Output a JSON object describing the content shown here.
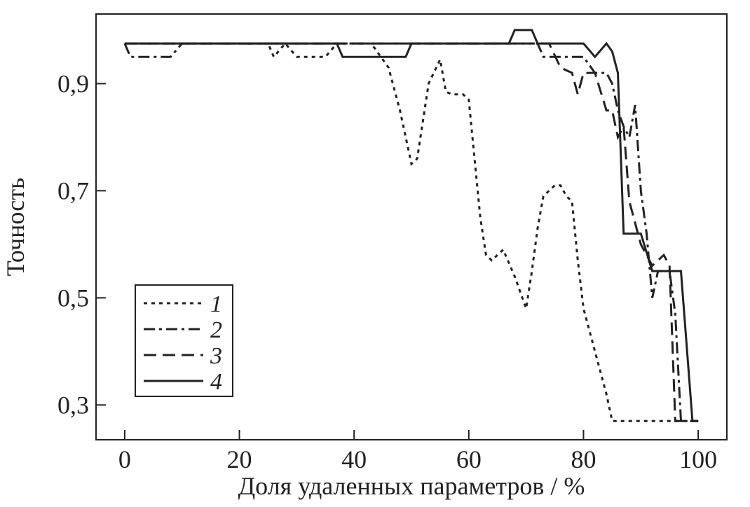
{
  "chart_data": {
    "type": "line",
    "title": "",
    "xlabel": "Доля удаленных параметров / %",
    "ylabel": "Точность",
    "xlim": [
      -5,
      105
    ],
    "ylim": [
      0.235,
      1.03
    ],
    "x_ticks": [
      0,
      20,
      40,
      60,
      80,
      100
    ],
    "x_tick_labels": [
      "0",
      "20",
      "40",
      "60",
      "80",
      "100"
    ],
    "y_ticks": [
      0.3,
      0.5,
      0.7,
      0.9
    ],
    "y_tick_labels": [
      "0,3",
      "0,5",
      "0,7",
      "0,9"
    ],
    "grid": false,
    "legend_position": "lower-left",
    "series": [
      {
        "name": "1",
        "dash": "dotted",
        "points": [
          [
            0,
            0.975
          ],
          [
            10,
            0.975
          ],
          [
            20,
            0.975
          ],
          [
            25,
            0.975
          ],
          [
            26,
            0.95
          ],
          [
            28,
            0.975
          ],
          [
            30,
            0.95
          ],
          [
            35,
            0.95
          ],
          [
            37,
            0.975
          ],
          [
            43,
            0.975
          ],
          [
            46,
            0.93
          ],
          [
            48,
            0.85
          ],
          [
            50,
            0.75
          ],
          [
            51,
            0.76
          ],
          [
            53,
            0.9
          ],
          [
            55,
            0.945
          ],
          [
            56,
            0.885
          ],
          [
            57,
            0.88
          ],
          [
            59,
            0.88
          ],
          [
            60,
            0.87
          ],
          [
            61,
            0.76
          ],
          [
            62,
            0.65
          ],
          [
            63,
            0.58
          ],
          [
            64,
            0.57
          ],
          [
            66,
            0.59
          ],
          [
            68,
            0.54
          ],
          [
            70,
            0.48
          ],
          [
            71,
            0.55
          ],
          [
            72,
            0.63
          ],
          [
            73,
            0.69
          ],
          [
            75,
            0.71
          ],
          [
            76,
            0.71
          ],
          [
            77,
            0.69
          ],
          [
            78,
            0.68
          ],
          [
            79,
            0.57
          ],
          [
            80,
            0.48
          ],
          [
            82,
            0.4
          ],
          [
            84,
            0.32
          ],
          [
            85,
            0.27
          ],
          [
            100,
            0.27
          ]
        ]
      },
      {
        "name": "2",
        "dash": "dash-dot",
        "points": [
          [
            0,
            0.975
          ],
          [
            1,
            0.95
          ],
          [
            3,
            0.95
          ],
          [
            8,
            0.95
          ],
          [
            10,
            0.975
          ],
          [
            20,
            0.975
          ],
          [
            40,
            0.975
          ],
          [
            60,
            0.975
          ],
          [
            70,
            0.975
          ],
          [
            72,
            0.975
          ],
          [
            73,
            0.95
          ],
          [
            78,
            0.95
          ],
          [
            80,
            0.95
          ],
          [
            82,
            0.92
          ],
          [
            84,
            0.92
          ],
          [
            85,
            0.9
          ],
          [
            86,
            0.85
          ],
          [
            87,
            0.82
          ],
          [
            88,
            0.8
          ],
          [
            89,
            0.86
          ],
          [
            90,
            0.7
          ],
          [
            91,
            0.62
          ],
          [
            92,
            0.5
          ],
          [
            93,
            0.55
          ],
          [
            95,
            0.55
          ],
          [
            96,
            0.47
          ],
          [
            97,
            0.27
          ],
          [
            100,
            0.27
          ]
        ]
      },
      {
        "name": "3",
        "dash": "dashed",
        "points": [
          [
            0,
            0.975
          ],
          [
            20,
            0.975
          ],
          [
            40,
            0.975
          ],
          [
            60,
            0.975
          ],
          [
            70,
            0.975
          ],
          [
            74,
            0.975
          ],
          [
            76,
            0.93
          ],
          [
            78,
            0.92
          ],
          [
            79,
            0.88
          ],
          [
            80,
            0.92
          ],
          [
            82,
            0.92
          ],
          [
            84,
            0.85
          ],
          [
            85,
            0.85
          ],
          [
            86,
            0.8
          ],
          [
            87,
            0.82
          ],
          [
            88,
            0.68
          ],
          [
            90,
            0.6
          ],
          [
            92,
            0.56
          ],
          [
            94,
            0.58
          ],
          [
            95,
            0.56
          ],
          [
            96,
            0.27
          ],
          [
            100,
            0.27
          ]
        ]
      },
      {
        "name": "4",
        "dash": "solid",
        "points": [
          [
            0,
            0.975
          ],
          [
            20,
            0.975
          ],
          [
            37,
            0.975
          ],
          [
            38,
            0.95
          ],
          [
            41,
            0.95
          ],
          [
            49,
            0.95
          ],
          [
            50,
            0.975
          ],
          [
            60,
            0.975
          ],
          [
            67,
            0.975
          ],
          [
            68,
            1.0
          ],
          [
            71,
            1.0
          ],
          [
            72,
            0.975
          ],
          [
            80,
            0.975
          ],
          [
            82,
            0.95
          ],
          [
            84,
            0.975
          ],
          [
            85,
            0.96
          ],
          [
            86,
            0.92
          ],
          [
            87,
            0.62
          ],
          [
            90,
            0.62
          ],
          [
            92,
            0.55
          ],
          [
            97,
            0.55
          ],
          [
            99,
            0.27
          ],
          [
            100,
            0.27
          ]
        ]
      }
    ]
  }
}
